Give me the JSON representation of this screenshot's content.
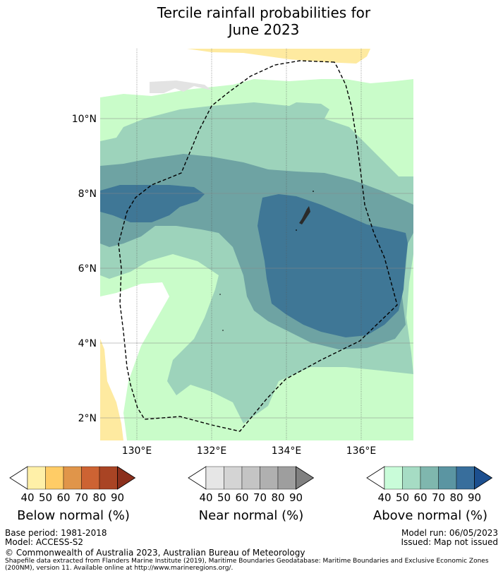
{
  "title_line1": "Tercile rainfall probabilities for",
  "title_line2": "June 2023",
  "map": {
    "lon_labels": [
      "130°E",
      "132°E",
      "134°E",
      "136°E"
    ],
    "lat_labels": [
      "10°N",
      "8°N",
      "6°N",
      "4°N",
      "2°N"
    ],
    "colors": {
      "above_40": "#c9fcc9",
      "above_50": "#9dd3bb",
      "above_60": "#6ea3a3",
      "above_70": "#3f7796",
      "below_40": "#feeaa0",
      "near_40": "#e3e3e3",
      "boundary": "#000000"
    }
  },
  "colorbars": {
    "below": {
      "label": "Below normal (%)",
      "ticks": [
        "40",
        "50",
        "60",
        "70",
        "80",
        "90"
      ],
      "colors": [
        "#ffffff",
        "#fff0a8",
        "#ffcc66",
        "#e0954a",
        "#cd6333",
        "#a94424",
        "#8b2f1c"
      ]
    },
    "near": {
      "label": "Near normal (%)",
      "ticks": [
        "40",
        "50",
        "60",
        "70",
        "80",
        "90"
      ],
      "colors": [
        "#ffffff",
        "#e6e6e6",
        "#d4d4d4",
        "#c4c4c4",
        "#b0b0b0",
        "#9e9e9e",
        "#808080"
      ]
    },
    "above": {
      "label": "Above normal (%)",
      "ticks": [
        "40",
        "50",
        "60",
        "70",
        "80",
        "90"
      ],
      "colors": [
        "#ffffff",
        "#c9fcd9",
        "#a6dcc4",
        "#7fb7ae",
        "#5b95a2",
        "#386e9c",
        "#1c4f8f"
      ]
    }
  },
  "footer": {
    "base_period": "Base period: 1981-2018",
    "model": "Model: ACCESS-S2",
    "model_run": "Model run: 06/05/2023",
    "issued": "Issued: Map not issued",
    "copyright": "© Commonwealth of Australia 2023, Australian Bureau of Meteorology",
    "shapefile_1": "Shapefile data extracted from Flanders Marine Institute (2019), Maritime Boundaries Geodatabase: Maritime Boundaries and Exclusive Economic Zones",
    "shapefile_2": "(200NM), version 11. Available online at http://www.marineregions.org/."
  }
}
